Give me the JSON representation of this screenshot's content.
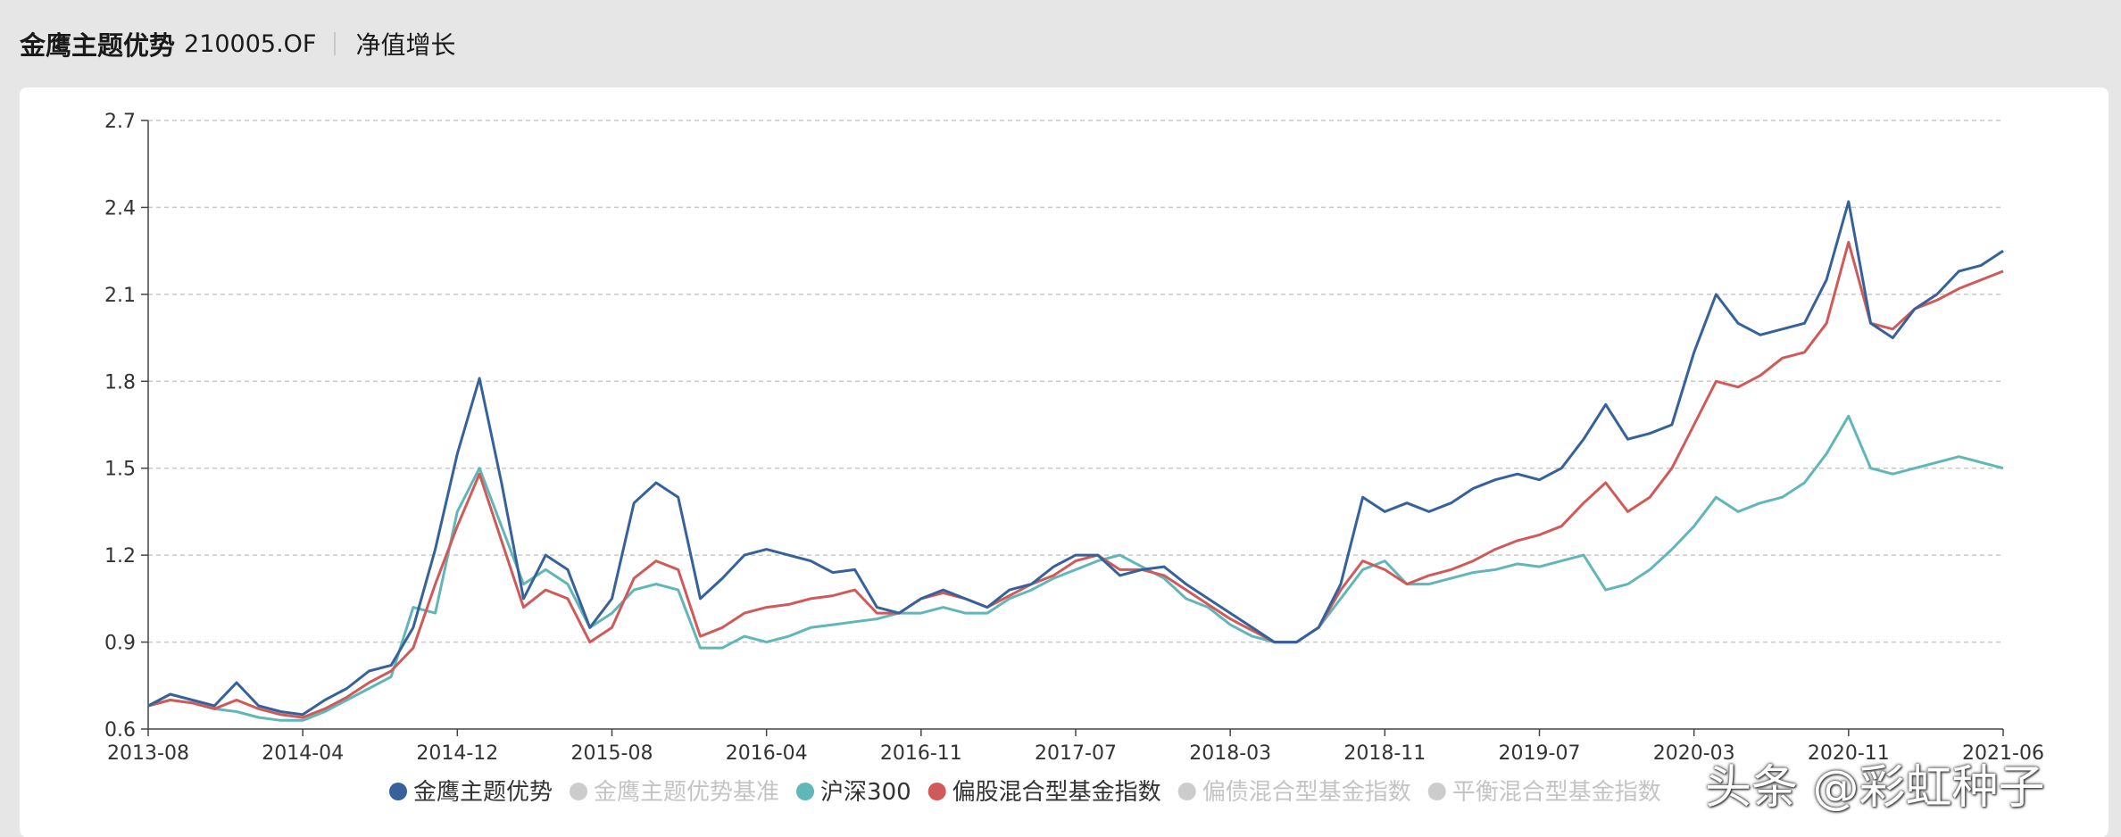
{
  "header": {
    "fund_name": "金鹰主题优势",
    "fund_code": "210005.OF",
    "tab_label": "净值增长"
  },
  "watermark": "头条 @彩虹种子",
  "chart_data": {
    "type": "line",
    "title": "",
    "xlabel": "",
    "ylabel": "",
    "ylim": [
      0.6,
      2.7
    ],
    "yticks": [
      "0.6",
      "0.9",
      "1.2",
      "1.5",
      "1.8",
      "2.1",
      "2.4",
      "2.7"
    ],
    "xticks": [
      "2013-08",
      "2014-04",
      "2014-12",
      "2015-08",
      "2016-04",
      "2016-11",
      "2017-07",
      "2018-03",
      "2018-11",
      "2019-07",
      "2020-03",
      "2020-11",
      "2021-06"
    ],
    "grid": "horizontal dashed",
    "legend_position": "bottom",
    "series": [
      {
        "name": "金鹰主题优势",
        "color": "#36619a",
        "visible": true,
        "values": [
          0.68,
          0.72,
          0.7,
          0.68,
          0.76,
          0.68,
          0.66,
          0.65,
          0.7,
          0.74,
          0.8,
          0.82,
          0.95,
          1.22,
          1.55,
          1.81,
          1.45,
          1.05,
          1.2,
          1.15,
          0.95,
          1.05,
          1.38,
          1.45,
          1.4,
          1.05,
          1.12,
          1.2,
          1.22,
          1.2,
          1.18,
          1.14,
          1.15,
          1.02,
          1.0,
          1.05,
          1.08,
          1.05,
          1.02,
          1.08,
          1.1,
          1.16,
          1.2,
          1.2,
          1.13,
          1.15,
          1.16,
          1.1,
          1.05,
          1.0,
          0.95,
          0.9,
          0.9,
          0.95,
          1.1,
          1.4,
          1.35,
          1.38,
          1.35,
          1.38,
          1.43,
          1.46,
          1.48,
          1.46,
          1.5,
          1.6,
          1.72,
          1.6,
          1.62,
          1.65,
          1.9,
          2.1,
          2.0,
          1.96,
          1.98,
          2.0,
          2.15,
          2.42,
          2.0,
          1.95,
          2.05,
          2.1,
          2.18,
          2.2,
          2.25
        ]
      },
      {
        "name": "金鹰主题优势基准",
        "color": "#cccccc",
        "visible": false,
        "values": []
      },
      {
        "name": "沪深300",
        "color": "#61b6b8",
        "visible": true,
        "values": [
          0.68,
          0.7,
          0.69,
          0.67,
          0.66,
          0.64,
          0.63,
          0.63,
          0.66,
          0.7,
          0.74,
          0.78,
          1.02,
          1.0,
          1.35,
          1.5,
          1.3,
          1.1,
          1.15,
          1.1,
          0.95,
          1.0,
          1.08,
          1.1,
          1.08,
          0.88,
          0.88,
          0.92,
          0.9,
          0.92,
          0.95,
          0.96,
          0.97,
          0.98,
          1.0,
          1.0,
          1.02,
          1.0,
          1.0,
          1.05,
          1.08,
          1.12,
          1.15,
          1.18,
          1.2,
          1.16,
          1.12,
          1.05,
          1.02,
          0.96,
          0.92,
          0.9,
          0.9,
          0.95,
          1.05,
          1.15,
          1.18,
          1.1,
          1.1,
          1.12,
          1.14,
          1.15,
          1.17,
          1.16,
          1.18,
          1.2,
          1.08,
          1.1,
          1.15,
          1.22,
          1.3,
          1.4,
          1.35,
          1.38,
          1.4,
          1.45,
          1.55,
          1.68,
          1.5,
          1.48,
          1.5,
          1.52,
          1.54,
          1.52,
          1.5
        ]
      },
      {
        "name": "偏股混合型基金指数",
        "color": "#d05a5a",
        "visible": true,
        "values": [
          0.68,
          0.7,
          0.69,
          0.67,
          0.7,
          0.67,
          0.65,
          0.64,
          0.67,
          0.71,
          0.76,
          0.8,
          0.88,
          1.1,
          1.3,
          1.48,
          1.25,
          1.02,
          1.08,
          1.05,
          0.9,
          0.95,
          1.12,
          1.18,
          1.15,
          0.92,
          0.95,
          1.0,
          1.02,
          1.03,
          1.05,
          1.06,
          1.08,
          1.0,
          1.0,
          1.05,
          1.07,
          1.05,
          1.02,
          1.06,
          1.1,
          1.13,
          1.18,
          1.2,
          1.15,
          1.15,
          1.13,
          1.08,
          1.03,
          0.98,
          0.94,
          0.9,
          0.9,
          0.95,
          1.08,
          1.18,
          1.15,
          1.1,
          1.13,
          1.15,
          1.18,
          1.22,
          1.25,
          1.27,
          1.3,
          1.38,
          1.45,
          1.35,
          1.4,
          1.5,
          1.65,
          1.8,
          1.78,
          1.82,
          1.88,
          1.9,
          2.0,
          2.28,
          2.0,
          1.98,
          2.05,
          2.08,
          2.12,
          2.15,
          2.18
        ]
      },
      {
        "name": "偏债混合型基金指数",
        "color": "#cccccc",
        "visible": false,
        "values": []
      },
      {
        "name": "平衡混合型基金指数",
        "color": "#cccccc",
        "visible": false,
        "values": []
      }
    ]
  }
}
